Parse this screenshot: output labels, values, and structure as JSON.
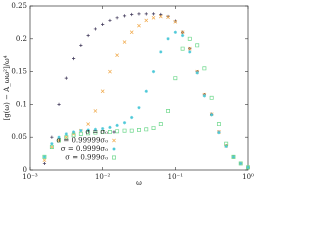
{
  "chart_data": {
    "type": "scatter",
    "x_label": "ω",
    "y_label": "[g(ω) − A_ωω²]/ω⁴",
    "xscale": "log",
    "xlim": [
      0.001,
      1
    ],
    "xticks": [
      {
        "value": 0.001,
        "label": "10⁻³"
      },
      {
        "value": 0.01,
        "label": "10⁻²"
      },
      {
        "value": 0.1,
        "label": "10⁻¹"
      },
      {
        "value": 1,
        "label": "10⁰"
      }
    ],
    "ylim": [
      0,
      0.25
    ],
    "yticks": [
      0,
      0.05,
      0.1,
      0.15,
      0.2,
      0.25
    ],
    "legend": "lower left",
    "x": [
      0.00158,
      0.002,
      0.00251,
      0.00316,
      0.00398,
      0.00501,
      0.00631,
      0.00794,
      0.01,
      0.0126,
      0.0158,
      0.02,
      0.0251,
      0.0316,
      0.0398,
      0.0501,
      0.0631,
      0.0794,
      0.1,
      0.126,
      0.158,
      0.2,
      0.251,
      0.316,
      0.398,
      0.501,
      0.631,
      0.794,
      1
    ],
    "series": [
      {
        "name": "σ = σ₀",
        "color": "#3b3355",
        "marker": "plus",
        "values": [
          0.01,
          0.05,
          0.1,
          0.14,
          0.17,
          0.19,
          0.205,
          0.215,
          0.222,
          0.228,
          0.232,
          0.235,
          0.237,
          0.238,
          0.238,
          0.238,
          0.237,
          0.234,
          0.227,
          0.21,
          0.185,
          0.15,
          0.115,
          0.085,
          0.058,
          0.037,
          0.02,
          0.01,
          0.004
        ]
      },
      {
        "name": "σ = 0.99999σ₀",
        "color": "#f0a848",
        "marker": "cross",
        "values": [
          0.015,
          0.035,
          0.045,
          0.05,
          0.055,
          0.06,
          0.07,
          0.09,
          0.12,
          0.15,
          0.175,
          0.195,
          0.21,
          0.22,
          0.228,
          0.232,
          0.234,
          0.233,
          0.226,
          0.21,
          0.185,
          0.15,
          0.115,
          0.085,
          0.058,
          0.037,
          0.02,
          0.01,
          0.004
        ]
      },
      {
        "name": "σ = 0.9999σ₀",
        "color": "#4cc8d8",
        "marker": "star",
        "values": [
          0.02,
          0.04,
          0.05,
          0.055,
          0.058,
          0.06,
          0.061,
          0.062,
          0.063,
          0.065,
          0.068,
          0.072,
          0.08,
          0.095,
          0.12,
          0.15,
          0.18,
          0.2,
          0.21,
          0.205,
          0.18,
          0.148,
          0.113,
          0.084,
          0.057,
          0.036,
          0.02,
          0.01,
          0.004
        ]
      },
      {
        "name": "σ = 0.999σ₀",
        "color": "#6ed88c",
        "marker": "square",
        "values": [
          0.02,
          0.035,
          0.045,
          0.05,
          0.053,
          0.055,
          0.056,
          0.057,
          0.058,
          0.058,
          0.059,
          0.06,
          0.06,
          0.061,
          0.062,
          0.064,
          0.07,
          0.09,
          0.14,
          0.185,
          0.2,
          0.19,
          0.155,
          0.11,
          0.07,
          0.04,
          0.02,
          0.01,
          0.004
        ]
      }
    ]
  }
}
